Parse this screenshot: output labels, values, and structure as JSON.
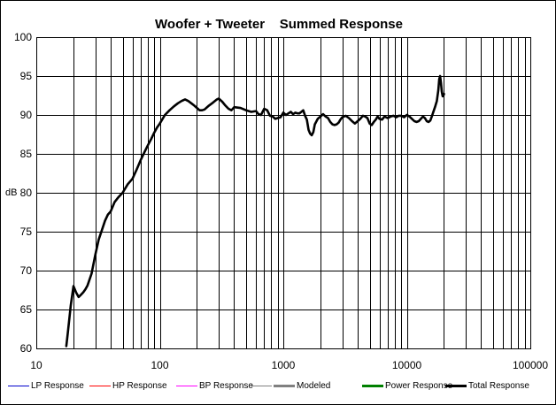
{
  "chart_data": {
    "type": "line",
    "title": "Woofer + Tweeter    Summed Response",
    "xlabel": "",
    "ylabel": "dB",
    "x_scale": "log",
    "xlim": [
      10,
      100000
    ],
    "ylim": [
      60,
      100
    ],
    "x_ticks": [
      "10",
      "100",
      "1000",
      "10000",
      "100000"
    ],
    "y_ticks": [
      "60",
      "65",
      "70",
      "75",
      "80",
      "85",
      "90",
      "95",
      "100"
    ],
    "grid": true,
    "legend_position": "bottom",
    "legend": [
      {
        "name": "LP Response",
        "color": "#0000cc",
        "width": 1
      },
      {
        "name": "HP Response",
        "color": "#ff0000",
        "width": 1
      },
      {
        "name": "BP Response",
        "color": "#ff00ff",
        "width": 1
      },
      {
        "name": "",
        "color": "#808080",
        "width": 1
      },
      {
        "name": "Modeled",
        "color": "#808080",
        "width": 3
      },
      {
        "name": "Power Response",
        "color": "#008000",
        "width": 3
      },
      {
        "name": "Total Response",
        "color": "#000000",
        "width": 3
      }
    ],
    "series": [
      {
        "name": "Total Response",
        "color": "#000000",
        "x": [
          17.5,
          18,
          19,
          20,
          21,
          22,
          23,
          24,
          25,
          26,
          28,
          30,
          32,
          34,
          36,
          38,
          40,
          43,
          46,
          50,
          55,
          60,
          65,
          70,
          75,
          80,
          85,
          90,
          95,
          100,
          110,
          120,
          130,
          140,
          150,
          160,
          170,
          180,
          190,
          200,
          210,
          220,
          230,
          250,
          270,
          290,
          300,
          320,
          340,
          360,
          380,
          400,
          450,
          500,
          550,
          600,
          630,
          660,
          700,
          740,
          780,
          820,
          860,
          900,
          950,
          1000,
          1050,
          1100,
          1150,
          1200,
          1250,
          1300,
          1350,
          1400,
          1450,
          1500,
          1550,
          1600,
          1650,
          1700,
          1750,
          1800,
          1900,
          2000,
          2100,
          2200,
          2300,
          2400,
          2500,
          2600,
          2700,
          2800,
          2900,
          3000,
          3200,
          3400,
          3600,
          3800,
          4000,
          4200,
          4400,
          4600,
          4800,
          5000,
          5200,
          5400,
          5600,
          5800,
          6000,
          6300,
          6600,
          7000,
          7400,
          7800,
          8200,
          8600,
          9000,
          9500,
          10000,
          10500,
          11000,
          11500,
          12000,
          12500,
          13000,
          13500,
          14000,
          14500,
          15000,
          15500,
          16000,
          16500,
          17000,
          17500,
          18000,
          18300,
          18600,
          18900,
          19200,
          19500,
          19800,
          20000
        ],
        "y": [
          60.3,
          62,
          65.5,
          68,
          67.2,
          66.6,
          66.9,
          67.2,
          67.6,
          68.1,
          69.6,
          72,
          74,
          75.2,
          76.4,
          77.2,
          77.6,
          78.8,
          79.4,
          80,
          81.1,
          81.8,
          83,
          84.2,
          85.2,
          86.1,
          86.9,
          87.7,
          88.4,
          88.9,
          90,
          90.6,
          91.1,
          91.5,
          91.8,
          92,
          91.8,
          91.5,
          91.2,
          90.9,
          90.6,
          90.6,
          90.7,
          91.2,
          91.6,
          92,
          92.1,
          91.7,
          91.2,
          90.8,
          90.6,
          91,
          90.9,
          90.6,
          90.4,
          90.5,
          90.1,
          90,
          90.8,
          90.6,
          89.9,
          89.8,
          89.5,
          89.6,
          89.7,
          90.3,
          90,
          90.2,
          90.4,
          90.1,
          90.3,
          90.2,
          90.2,
          90.4,
          90.6,
          89.9,
          89.4,
          88.1,
          87.6,
          87.4,
          87.8,
          88.8,
          89.5,
          89.8,
          90.1,
          89.8,
          89.6,
          89.1,
          88.8,
          88.7,
          88.8,
          89,
          89.4,
          89.7,
          89.9,
          89.6,
          89.2,
          88.9,
          89.2,
          89.5,
          89.9,
          89.8,
          89.6,
          88.9,
          88.7,
          89.1,
          89.4,
          89.8,
          89.5,
          89.4,
          89.8,
          89.6,
          89.8,
          89.9,
          89.7,
          89.9,
          89.9,
          89.7,
          90,
          89.8,
          89.5,
          89.2,
          89.1,
          89.2,
          89.5,
          89.8,
          89.6,
          89.2,
          89.1,
          89.3,
          89.9,
          90.5,
          91.1,
          91.8,
          93.2,
          94.6,
          95.0,
          94.1,
          93.0,
          92.4,
          92.5,
          92.7
        ]
      }
    ]
  }
}
